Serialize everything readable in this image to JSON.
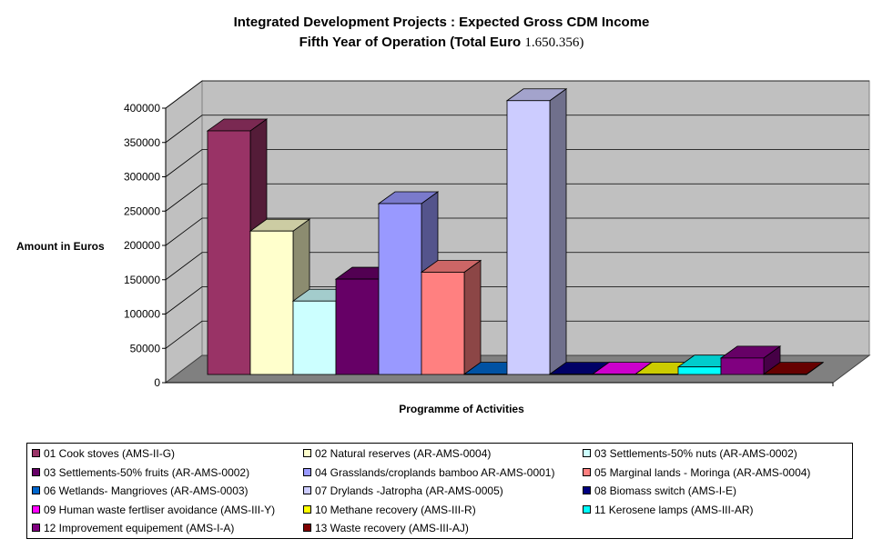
{
  "title_line1": "Integrated Development Projects : Expected Gross CDM Income",
  "title_line2_prefix": "Fifth Year of Operation (Total Euro ",
  "title_line2_value": "1.650.356",
  "title_line2_suffix": ")",
  "chart_data": {
    "type": "bar",
    "title": "Integrated Development Projects : Expected Gross CDM Income Fifth Year of Operation (Total Euro 1.650.356)",
    "xlabel": "Programme of Activities",
    "ylabel": "Amount in Euros",
    "ylim": [
      0,
      400000
    ],
    "yticks": [
      "0",
      "50000",
      "100000",
      "150000",
      "200000",
      "250000",
      "300000",
      "350000",
      "400000"
    ],
    "grid": true,
    "legend_position": "bottom",
    "three_d": true,
    "series": [
      {
        "name": "01 Cook stoves (AMS-II-G)",
        "value": 355000,
        "color": "#993366"
      },
      {
        "name": "02 Natural reserves (AR-AMS-0004)",
        "value": 209000,
        "color": "#FFFFCC"
      },
      {
        "name": "03 Settlements-50% nuts (AR-AMS-0002)",
        "value": 107000,
        "color": "#CCFFFF"
      },
      {
        "name": "03 Settlements-50% fruits (AR-AMS-0002)",
        "value": 139000,
        "color": "#660066"
      },
      {
        "name": "04 Grasslands/croplands bamboo AR-AMS-0001)",
        "value": 249000,
        "color": "#9999FF"
      },
      {
        "name": "05 Marginal lands - Moringa (AR-AMS-0004)",
        "value": 149000,
        "color": "#FF8080"
      },
      {
        "name": "06 Wetlands- Mangrioves (AR-AMS-0003)",
        "value": 500,
        "color": "#0066CC"
      },
      {
        "name": "07 Drylands -Jatropha (AR-AMS-0005)",
        "value": 399000,
        "color": "#CCCCFF"
      },
      {
        "name": "08 Biomass switch (AMS-I-E)",
        "value": 500,
        "color": "#000080"
      },
      {
        "name": "09 Human waste fertliser avoidance (AMS-III-Y)",
        "value": 500,
        "color": "#FF00FF"
      },
      {
        "name": "10 Methane recovery (AMS-III-R)",
        "value": 500,
        "color": "#FFFF00"
      },
      {
        "name": "11 Kerosene lamps (AMS-III-AR)",
        "value": 11000,
        "color": "#00FFFF"
      },
      {
        "name": "12 Improvement equipement (AMS-I-A)",
        "value": 24000,
        "color": "#800080"
      },
      {
        "name": "13 Waste recovery (AMS-III-AJ)",
        "value": 500,
        "color": "#800000"
      }
    ]
  }
}
